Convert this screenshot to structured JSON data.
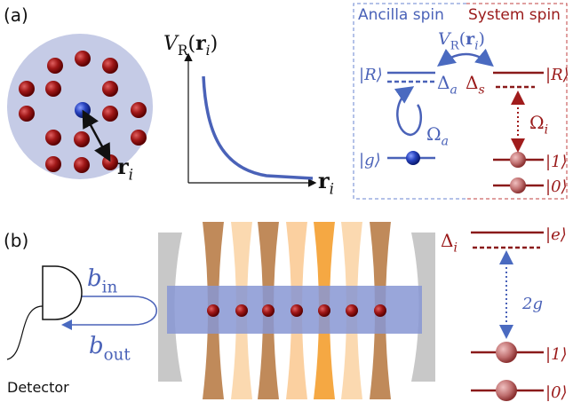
{
  "panel_a": {
    "label": "(a)",
    "atom_label": [
      {
        "text": "r",
        "bold": true
      },
      {
        "text": "i",
        "sub": true
      }
    ],
    "plot": {
      "y_label": [
        {
          "text": "V"
        },
        {
          "text": "R",
          "sub": true,
          "upright": true
        },
        {
          "text": "(",
          "upright": true
        },
        {
          "text": "r",
          "bold": true
        },
        {
          "text": "i",
          "sub": true
        },
        {
          "text": ")",
          "upright": true
        }
      ],
      "x_label": [
        {
          "text": "r",
          "bold": true
        },
        {
          "text": "i",
          "sub": true
        }
      ]
    },
    "ancilla": {
      "title": "Ancilla spin",
      "upper": "|R⟩",
      "detuning": [
        {
          "text": "Δ",
          "upright": true
        },
        {
          "text": "a",
          "sub": true
        }
      ],
      "drive": [
        {
          "text": "Ω",
          "upright": true
        },
        {
          "text": "a",
          "sub": true
        }
      ],
      "lower": "|g⟩"
    },
    "system": {
      "title": "System spin",
      "upper": "|R⟩",
      "detuning": [
        {
          "text": "Δ",
          "upright": true
        },
        {
          "text": "s",
          "sub": true
        }
      ],
      "drive": [
        {
          "text": "Ω",
          "upright": true
        },
        {
          "text": "i",
          "sub": true
        }
      ],
      "levels": [
        "|1⟩",
        "|0⟩"
      ]
    },
    "interaction": [
      {
        "text": "V"
      },
      {
        "text": "R",
        "sub": true,
        "upright": true
      },
      {
        "text": "(",
        "upright": true
      },
      {
        "text": "r",
        "bold": true
      },
      {
        "text": "i",
        "sub": true
      },
      {
        "text": ")",
        "upright": true
      }
    ]
  },
  "panel_b": {
    "label": "(b)",
    "input": [
      {
        "text": "b"
      },
      {
        "text": "in",
        "sub": true,
        "upright": true
      }
    ],
    "output": [
      {
        "text": "b"
      },
      {
        "text": "out",
        "sub": true,
        "upright": true
      }
    ],
    "detector": "Detector",
    "excited": "|e⟩",
    "detuning": [
      {
        "text": "Δ",
        "upright": true
      },
      {
        "text": "i",
        "sub": true
      }
    ],
    "coupling": "2g",
    "levels": [
      "|1⟩",
      "|0⟩"
    ]
  }
}
